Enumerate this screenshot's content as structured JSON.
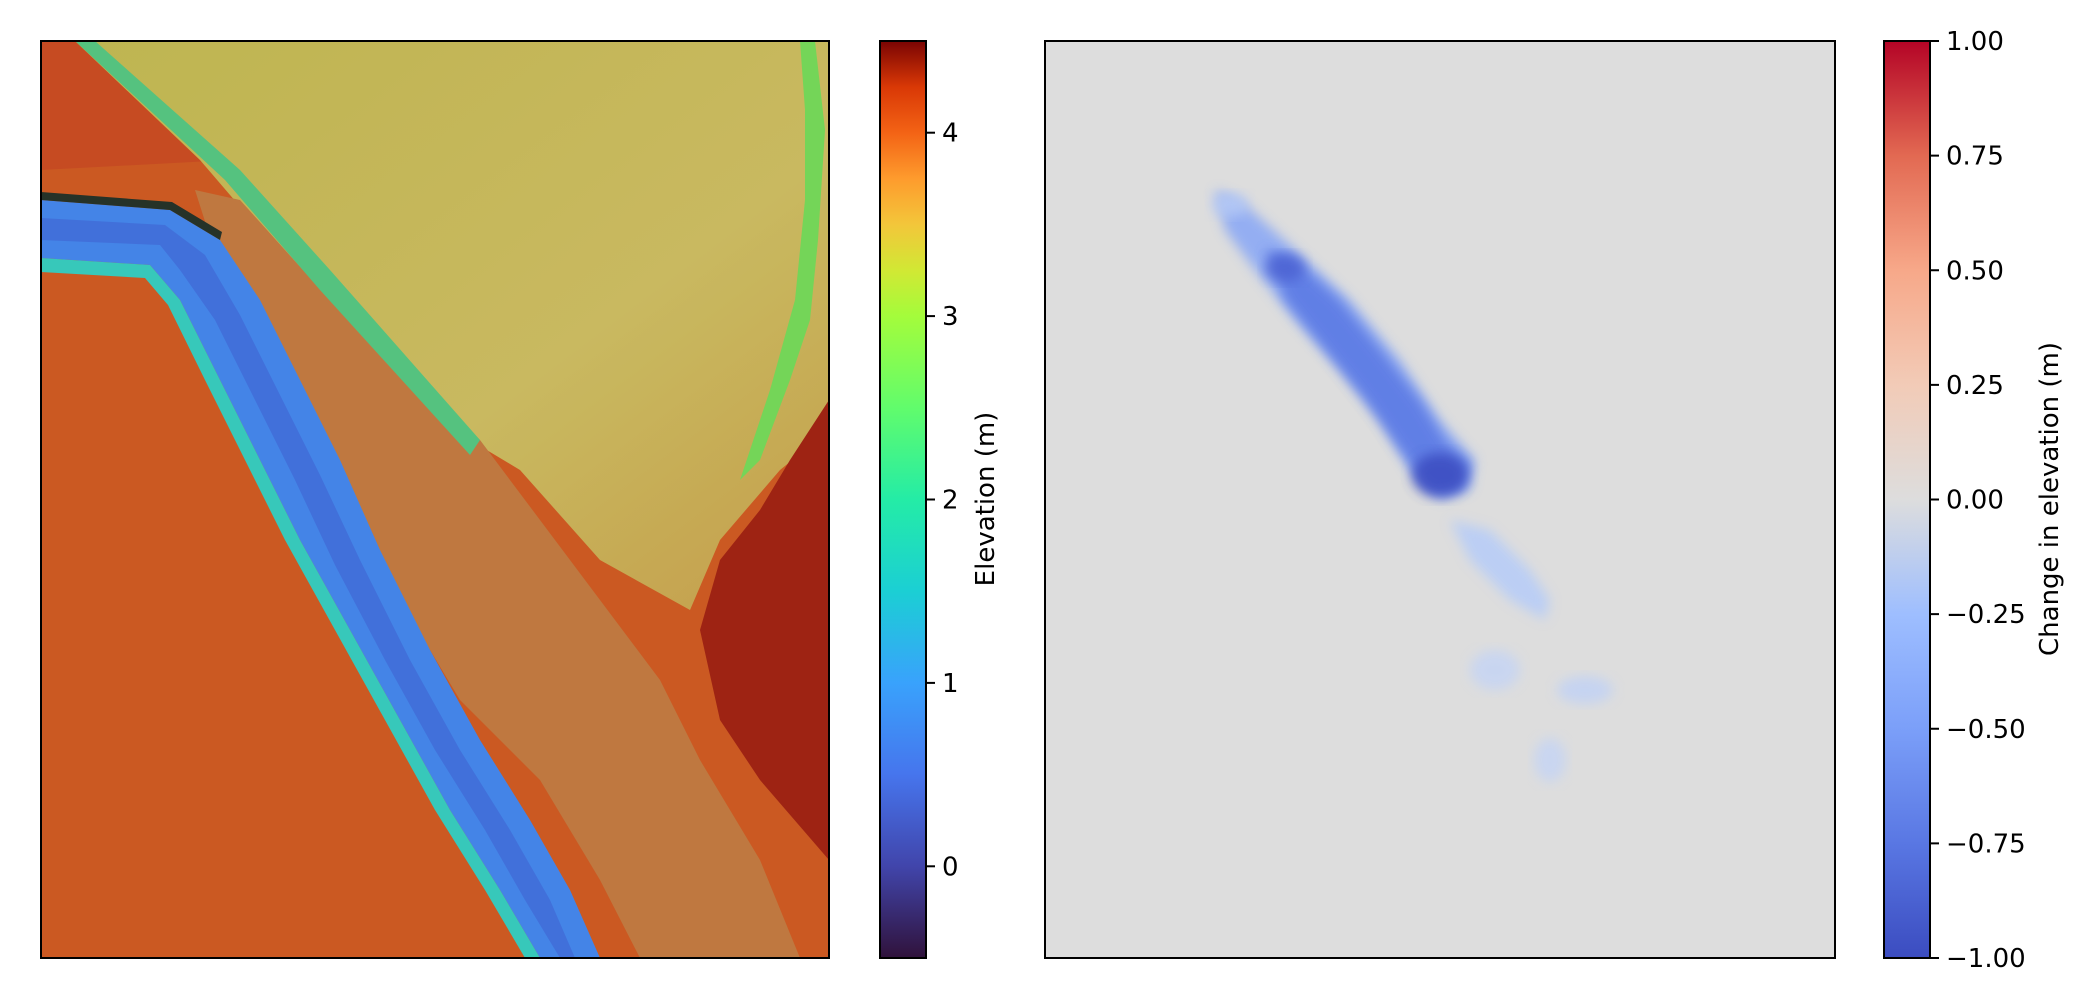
{
  "chart_data": [
    {
      "type": "heatmap",
      "title": "",
      "description": "Hillshaded elevation raster (river channel)",
      "colorbar": {
        "label": "Elevation (m)",
        "colormap": "turbo",
        "range": [
          -0.5,
          4.5
        ],
        "ticks": [
          {
            "value": 0,
            "label": "0"
          },
          {
            "value": 1,
            "label": "1"
          },
          {
            "value": 2,
            "label": "2"
          },
          {
            "value": 3,
            "label": "3"
          },
          {
            "value": 4,
            "label": "4"
          }
        ]
      }
    },
    {
      "type": "heatmap",
      "title": "",
      "description": "Difference raster, lowering along the right bank",
      "colorbar": {
        "label": "Change in elevation (m)",
        "colormap": "coolwarm",
        "range": [
          -1.0,
          1.0
        ],
        "ticks": [
          {
            "value": 1.0,
            "label": "1.00"
          },
          {
            "value": 0.75,
            "label": "0.75"
          },
          {
            "value": 0.5,
            "label": "0.50"
          },
          {
            "value": 0.25,
            "label": "0.25"
          },
          {
            "value": 0.0,
            "label": "0.00"
          },
          {
            "value": -0.25,
            "label": "−0.25"
          },
          {
            "value": -0.5,
            "label": "−0.50"
          },
          {
            "value": -0.75,
            "label": "−0.75"
          },
          {
            "value": -1.0,
            "label": "−1.00"
          }
        ]
      }
    }
  ]
}
